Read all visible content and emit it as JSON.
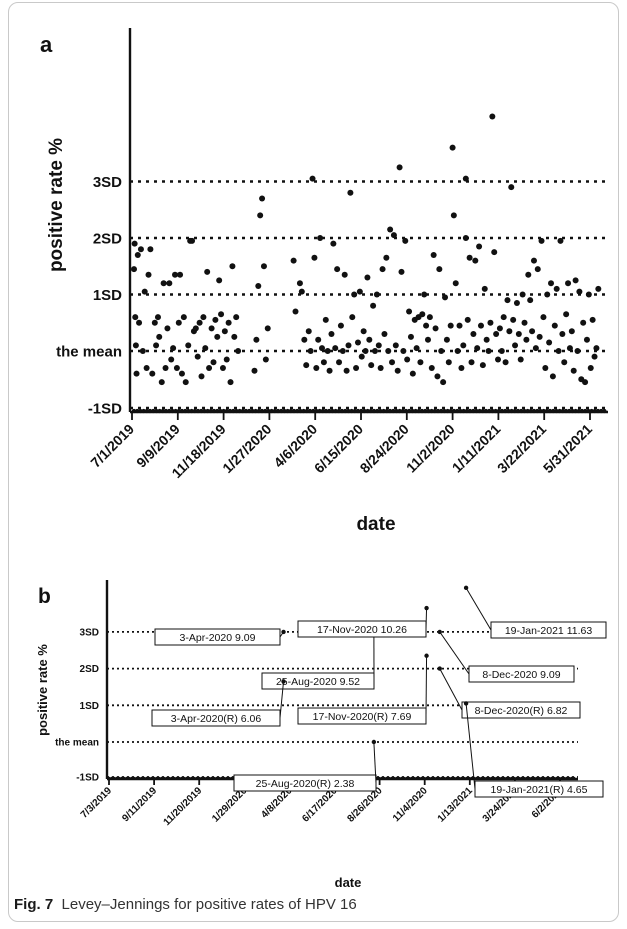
{
  "figure": {
    "caption_label": "Fig. 7",
    "caption_text": "Levey–Jennings for positive rates of HPV 16"
  },
  "chart_data": [
    {
      "panel": "a",
      "type": "scatter",
      "xlabel": "date",
      "ylabel": "positive rate %",
      "ylim": [
        -1.05,
        4.5
      ],
      "y_units": "SD",
      "control_lines": [
        {
          "label": "3SD",
          "value": 3
        },
        {
          "label": "2SD",
          "value": 2
        },
        {
          "label": "1SD",
          "value": 1
        },
        {
          "label": "the mean",
          "value": 0
        },
        {
          "label": "-1SD",
          "value": -1
        }
      ],
      "x_ticks": [
        "7/1/2019",
        "9/9/2019",
        "11/18/2019",
        "1/27/2020",
        "4/6/2020",
        "6/15/2020",
        "8/24/2020",
        "11/2/2020",
        "1/11/2021",
        "3/22/2021",
        "5/31/2021"
      ],
      "x_range": [
        "2019-07-01",
        "2021-07-15"
      ],
      "points": [
        [
          "2019-07-01",
          1.45
        ],
        [
          "2019-07-02",
          1.9
        ],
        [
          "2019-07-03",
          0.6
        ],
        [
          "2019-07-04",
          0.1
        ],
        [
          "2019-07-05",
          -0.4
        ],
        [
          "2019-07-07",
          1.7
        ],
        [
          "2019-07-09",
          0.5
        ],
        [
          "2019-07-12",
          1.8
        ],
        [
          "2019-07-15",
          0.0
        ],
        [
          "2019-07-18",
          1.05
        ],
        [
          "2019-07-21",
          -0.3
        ],
        [
          "2019-07-24",
          1.35
        ],
        [
          "2019-07-27",
          1.8
        ],
        [
          "2019-07-30",
          -0.4
        ],
        [
          "2019-08-03",
          0.5
        ],
        [
          "2019-08-05",
          0.1
        ],
        [
          "2019-08-08",
          0.6
        ],
        [
          "2019-08-10",
          0.25
        ],
        [
          "2019-08-14",
          -0.55
        ],
        [
          "2019-08-17",
          1.2
        ],
        [
          "2019-08-20",
          -0.3
        ],
        [
          "2019-08-23",
          0.4
        ],
        [
          "2019-08-26",
          1.2
        ],
        [
          "2019-08-29",
          -0.15
        ],
        [
          "2019-09-01",
          0.05
        ],
        [
          "2019-09-04",
          1.35
        ],
        [
          "2019-09-07",
          -0.3
        ],
        [
          "2019-09-10",
          0.5
        ],
        [
          "2019-09-12",
          1.35
        ],
        [
          "2019-09-15",
          -0.4
        ],
        [
          "2019-09-18",
          0.6
        ],
        [
          "2019-09-21",
          -0.55
        ],
        [
          "2019-09-25",
          0.1
        ],
        [
          "2019-09-28",
          1.95
        ],
        [
          "2019-10-01",
          1.95
        ],
        [
          "2019-10-04",
          0.35
        ],
        [
          "2019-10-07",
          0.4
        ],
        [
          "2019-10-10",
          -0.1
        ],
        [
          "2019-10-13",
          0.5
        ],
        [
          "2019-10-16",
          -0.45
        ],
        [
          "2019-10-19",
          0.6
        ],
        [
          "2019-10-22",
          0.05
        ],
        [
          "2019-10-25",
          1.4
        ],
        [
          "2019-10-28",
          -0.3
        ],
        [
          "2019-11-01",
          0.4
        ],
        [
          "2019-11-04",
          -0.2
        ],
        [
          "2019-11-07",
          0.55
        ],
        [
          "2019-11-10",
          0.25
        ],
        [
          "2019-11-13",
          1.25
        ],
        [
          "2019-11-16",
          0.65
        ],
        [
          "2019-11-19",
          -0.3
        ],
        [
          "2019-11-22",
          0.35
        ],
        [
          "2019-11-25",
          -0.15
        ],
        [
          "2019-11-28",
          0.5
        ],
        [
          "2019-12-01",
          -0.55
        ],
        [
          "2019-12-04",
          1.5
        ],
        [
          "2019-12-07",
          0.25
        ],
        [
          "2019-12-10",
          0.6
        ],
        [
          "2019-12-13",
          0.0
        ],
        [
          "2020-01-08",
          -0.35
        ],
        [
          "2020-01-11",
          0.2
        ],
        [
          "2020-01-14",
          1.15
        ],
        [
          "2020-01-17",
          2.4
        ],
        [
          "2020-01-20",
          2.7
        ],
        [
          "2020-01-23",
          1.5
        ],
        [
          "2020-01-26",
          -0.15
        ],
        [
          "2020-01-29",
          0.4
        ],
        [
          "2020-03-10",
          1.6
        ],
        [
          "2020-03-13",
          0.7
        ],
        [
          "2020-03-20",
          1.2
        ],
        [
          "2020-03-23",
          1.05
        ],
        [
          "2020-03-27",
          0.2
        ],
        [
          "2020-03-30",
          -0.25
        ],
        [
          "2020-04-03",
          0.35
        ],
        [
          "2020-04-06",
          0.0
        ],
        [
          "2020-04-09",
          3.05
        ],
        [
          "2020-04-12",
          1.65
        ],
        [
          "2020-04-15",
          -0.3
        ],
        [
          "2020-04-18",
          0.2
        ],
        [
          "2020-04-21",
          2.0
        ],
        [
          "2020-04-24",
          0.05
        ],
        [
          "2020-04-27",
          -0.2
        ],
        [
          "2020-04-30",
          0.55
        ],
        [
          "2020-05-03",
          0.0
        ],
        [
          "2020-05-06",
          -0.35
        ],
        [
          "2020-05-09",
          0.3
        ],
        [
          "2020-05-12",
          1.9
        ],
        [
          "2020-05-15",
          0.05
        ],
        [
          "2020-05-18",
          1.45
        ],
        [
          "2020-05-21",
          -0.2
        ],
        [
          "2020-05-24",
          0.45
        ],
        [
          "2020-05-27",
          0.0
        ],
        [
          "2020-05-30",
          1.35
        ],
        [
          "2020-06-02",
          -0.35
        ],
        [
          "2020-06-05",
          0.1
        ],
        [
          "2020-06-08",
          2.8
        ],
        [
          "2020-06-11",
          0.6
        ],
        [
          "2020-06-14",
          1.0
        ],
        [
          "2020-06-17",
          -0.3
        ],
        [
          "2020-06-20",
          0.15
        ],
        [
          "2020-06-23",
          1.05
        ],
        [
          "2020-06-26",
          -0.1
        ],
        [
          "2020-06-29",
          0.35
        ],
        [
          "2020-07-02",
          0.0
        ],
        [
          "2020-07-05",
          1.3
        ],
        [
          "2020-07-08",
          0.2
        ],
        [
          "2020-07-11",
          -0.25
        ],
        [
          "2020-07-14",
          0.8
        ],
        [
          "2020-07-17",
          0.0
        ],
        [
          "2020-07-20",
          1.0
        ],
        [
          "2020-07-23",
          0.1
        ],
        [
          "2020-07-26",
          -0.3
        ],
        [
          "2020-07-29",
          1.45
        ],
        [
          "2020-08-01",
          0.3
        ],
        [
          "2020-08-04",
          1.65
        ],
        [
          "2020-08-07",
          0.0
        ],
        [
          "2020-08-10",
          2.15
        ],
        [
          "2020-08-13",
          -0.2
        ],
        [
          "2020-08-16",
          2.05
        ],
        [
          "2020-08-19",
          0.1
        ],
        [
          "2020-08-22",
          -0.35
        ],
        [
          "2020-08-25",
          3.25
        ],
        [
          "2020-08-28",
          1.4
        ],
        [
          "2020-08-31",
          0.0
        ],
        [
          "2020-09-03",
          1.95
        ],
        [
          "2020-09-06",
          -0.15
        ],
        [
          "2020-09-09",
          0.7
        ],
        [
          "2020-09-12",
          0.25
        ],
        [
          "2020-09-15",
          -0.4
        ],
        [
          "2020-09-18",
          0.55
        ],
        [
          "2020-09-21",
          0.05
        ],
        [
          "2020-09-24",
          0.6
        ],
        [
          "2020-09-27",
          -0.2
        ],
        [
          "2020-09-30",
          0.65
        ],
        [
          "2020-10-03",
          1.0
        ],
        [
          "2020-10-06",
          0.45
        ],
        [
          "2020-10-09",
          0.2
        ],
        [
          "2020-10-12",
          0.6
        ],
        [
          "2020-10-15",
          -0.3
        ],
        [
          "2020-10-18",
          1.7
        ],
        [
          "2020-10-21",
          0.4
        ],
        [
          "2020-10-24",
          -0.45
        ],
        [
          "2020-10-27",
          1.45
        ],
        [
          "2020-10-30",
          0.0
        ],
        [
          "2020-11-02",
          -0.55
        ],
        [
          "2020-11-05",
          0.95
        ],
        [
          "2020-11-08",
          0.2
        ],
        [
          "2020-11-11",
          -0.2
        ],
        [
          "2020-11-14",
          0.45
        ],
        [
          "2020-11-17",
          3.6
        ],
        [
          "2020-11-19",
          2.4
        ],
        [
          "2020-11-22",
          1.2
        ],
        [
          "2020-11-25",
          0.0
        ],
        [
          "2020-11-28",
          0.45
        ],
        [
          "2020-12-01",
          -0.3
        ],
        [
          "2020-12-04",
          0.1
        ],
        [
          "2020-12-08",
          3.05
        ],
        [
          "2020-12-08",
          2.0
        ],
        [
          "2020-12-11",
          0.55
        ],
        [
          "2020-12-14",
          1.65
        ],
        [
          "2020-12-17",
          -0.2
        ],
        [
          "2020-12-20",
          0.3
        ],
        [
          "2020-12-23",
          1.6
        ],
        [
          "2020-12-26",
          0.05
        ],
        [
          "2020-12-29",
          1.85
        ],
        [
          "2021-01-01",
          0.45
        ],
        [
          "2021-01-04",
          -0.25
        ],
        [
          "2021-01-07",
          1.1
        ],
        [
          "2021-01-10",
          0.2
        ],
        [
          "2021-01-13",
          0.0
        ],
        [
          "2021-01-16",
          0.5
        ],
        [
          "2021-01-19",
          4.15
        ],
        [
          "2021-01-22",
          1.75
        ],
        [
          "2021-01-25",
          0.3
        ],
        [
          "2021-01-28",
          -0.15
        ],
        [
          "2021-01-31",
          0.4
        ],
        [
          "2021-02-03",
          0.0
        ],
        [
          "2021-02-06",
          0.6
        ],
        [
          "2021-02-09",
          -0.2
        ],
        [
          "2021-02-12",
          0.9
        ],
        [
          "2021-02-15",
          0.35
        ],
        [
          "2021-02-18",
          2.9
        ],
        [
          "2021-02-21",
          0.55
        ],
        [
          "2021-02-24",
          0.1
        ],
        [
          "2021-02-27",
          0.85
        ],
        [
          "2021-03-02",
          0.3
        ],
        [
          "2021-03-05",
          -0.15
        ],
        [
          "2021-03-08",
          1.0
        ],
        [
          "2021-03-11",
          0.5
        ],
        [
          "2021-03-14",
          0.2
        ],
        [
          "2021-03-17",
          1.35
        ],
        [
          "2021-03-20",
          0.9
        ],
        [
          "2021-03-23",
          0.35
        ],
        [
          "2021-03-26",
          1.6
        ],
        [
          "2021-03-29",
          0.05
        ],
        [
          "2021-04-01",
          1.45
        ],
        [
          "2021-04-04",
          0.25
        ],
        [
          "2021-04-07",
          1.95
        ],
        [
          "2021-04-10",
          0.6
        ],
        [
          "2021-04-13",
          -0.3
        ],
        [
          "2021-04-16",
          1.0
        ],
        [
          "2021-04-19",
          0.15
        ],
        [
          "2021-04-22",
          1.2
        ],
        [
          "2021-04-25",
          -0.45
        ],
        [
          "2021-04-28",
          0.45
        ],
        [
          "2021-05-01",
          1.1
        ],
        [
          "2021-05-04",
          0.0
        ],
        [
          "2021-05-07",
          1.95
        ],
        [
          "2021-05-10",
          0.3
        ],
        [
          "2021-05-13",
          -0.2
        ],
        [
          "2021-05-16",
          0.65
        ],
        [
          "2021-05-19",
          1.2
        ],
        [
          "2021-05-22",
          0.05
        ],
        [
          "2021-05-25",
          0.35
        ],
        [
          "2021-05-28",
          -0.35
        ],
        [
          "2021-05-31",
          1.25
        ],
        [
          "2021-06-03",
          0.0
        ],
        [
          "2021-06-06",
          1.05
        ],
        [
          "2021-06-09",
          -0.5
        ],
        [
          "2021-06-12",
          0.5
        ],
        [
          "2021-06-15",
          -0.55
        ],
        [
          "2021-06-18",
          0.2
        ],
        [
          "2021-06-21",
          1.0
        ],
        [
          "2021-06-24",
          -0.3
        ],
        [
          "2021-06-27",
          0.55
        ],
        [
          "2021-06-30",
          -0.1
        ],
        [
          "2021-07-03",
          0.05
        ],
        [
          "2021-07-06",
          1.1
        ]
      ]
    },
    {
      "panel": "b",
      "type": "scatter",
      "xlabel": "date",
      "ylabel": "positive rate %",
      "ylim": [
        -1.05,
        4.5
      ],
      "control_lines": [
        {
          "label": "3SD",
          "value": 3
        },
        {
          "label": "2SD",
          "value": 2
        },
        {
          "label": "1SD",
          "value": 1
        },
        {
          "label": "the mean",
          "value": 0
        },
        {
          "label": "-1SD",
          "value": -1
        }
      ],
      "x_ticks": [
        "7/3/2019",
        "9/11/2019",
        "11/20/2019",
        "1/29/2020",
        "4/8/2020",
        "6/17/2020",
        "8/26/2020",
        "11/4/2020",
        "1/13/2021",
        "3/24/2021",
        "6/2/2021"
      ],
      "x_range": [
        "2019-07-03",
        "2021-07-10"
      ],
      "points": [
        {
          "date": "2020-04-03",
          "y": 3.0,
          "label": "3-Apr-2020  9.09"
        },
        {
          "date": "2020-08-25",
          "y": 3.2,
          "label": "25-Aug-2020  9.52"
        },
        {
          "date": "2020-11-17",
          "y": 3.65,
          "label": "17-Nov-2020  10.26"
        },
        {
          "date": "2021-01-19",
          "y": 4.2,
          "label": "19-Jan-2021  11.63"
        },
        {
          "date": "2020-12-08",
          "y": 3.0,
          "label": "8-Dec-2020  9.09"
        },
        {
          "date": "2020-04-03",
          "y": 1.65,
          "label": "3-Apr-2020(R)  6.06"
        },
        {
          "date": "2020-11-17",
          "y": 2.35,
          "label": "17-Nov-2020(R)  7.69"
        },
        {
          "date": "2020-12-08",
          "y": 2.0,
          "label": "8-Dec-2020(R)  6.82"
        },
        {
          "date": "2021-01-19",
          "y": 1.05,
          "label": "19-Jan-2021(R)  4.65"
        },
        {
          "date": "2020-08-25",
          "y": 0.0,
          "label": "25-Aug-2020(R)  2.38"
        }
      ]
    }
  ]
}
